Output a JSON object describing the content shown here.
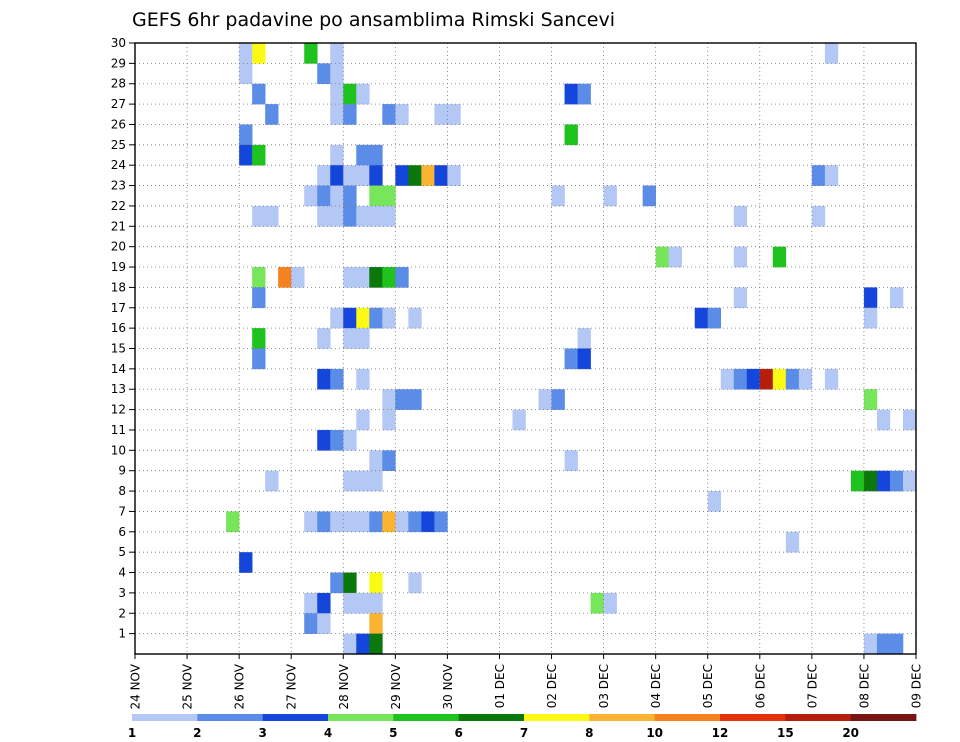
{
  "chart_data": {
    "type": "heatmap",
    "title": "GEFS 6hr padavine po ansamblima Rimski Sancevi",
    "xlabel": "",
    "ylabel": "",
    "x_ticks": [
      "24 NOV",
      "25 NOV",
      "26 NOV",
      "27 NOV",
      "28 NOV",
      "29 NOV",
      "30 NOV",
      "01 DEC",
      "02 DEC",
      "03 DEC",
      "04 DEC",
      "05 DEC",
      "06 DEC",
      "07 DEC",
      "08 DEC",
      "09 DEC"
    ],
    "y_ticks": [
      "1",
      "2",
      "3",
      "4",
      "5",
      "6",
      "7",
      "8",
      "9",
      "10",
      "11",
      "12",
      "13",
      "14",
      "15",
      "16",
      "17",
      "18",
      "19",
      "20",
      "21",
      "22",
      "23",
      "24",
      "25",
      "26",
      "27",
      "28",
      "29",
      "30"
    ],
    "x_range": [
      0,
      60
    ],
    "y_range": [
      0,
      30
    ],
    "x_unit": "6-hour step since 24 NOV 00Z",
    "y_unit": "ensemble member",
    "levels": [
      "1",
      "2",
      "3",
      "4",
      "5",
      "6",
      "7",
      "8",
      "10",
      "12",
      "15",
      "20"
    ],
    "colors": [
      "#b4c8f5",
      "#5a8ce8",
      "#1446dc",
      "#78e65a",
      "#1ec31e",
      "#0a780a",
      "#fafa14",
      "#fab432",
      "#f5821e",
      "#e6320a",
      "#b41e0a",
      "#781414"
    ],
    "cells": [
      [
        8,
        30,
        1
      ],
      [
        9,
        30,
        7
      ],
      [
        13,
        30,
        5
      ],
      [
        15,
        30,
        1
      ],
      [
        53,
        30,
        1
      ],
      [
        8,
        29,
        1
      ],
      [
        14,
        29,
        2
      ],
      [
        15,
        29,
        1
      ],
      [
        9,
        28,
        2
      ],
      [
        15,
        28,
        1
      ],
      [
        16,
        28,
        5
      ],
      [
        17,
        28,
        1
      ],
      [
        33,
        28,
        3
      ],
      [
        34,
        28,
        2
      ],
      [
        10,
        27,
        2
      ],
      [
        15,
        27,
        1
      ],
      [
        16,
        27,
        2
      ],
      [
        19,
        27,
        2
      ],
      [
        20,
        27,
        1
      ],
      [
        23,
        27,
        1
      ],
      [
        24,
        27,
        1
      ],
      [
        8,
        26,
        2
      ],
      [
        33,
        26,
        5
      ],
      [
        8,
        25,
        3
      ],
      [
        9,
        25,
        5
      ],
      [
        15,
        25,
        1
      ],
      [
        17,
        25,
        2
      ],
      [
        18,
        25,
        2
      ],
      [
        14,
        24,
        1
      ],
      [
        15,
        24,
        3
      ],
      [
        16,
        24,
        1
      ],
      [
        17,
        24,
        1
      ],
      [
        18,
        24,
        3
      ],
      [
        20,
        24,
        3
      ],
      [
        21,
        24,
        6
      ],
      [
        22,
        24,
        8
      ],
      [
        23,
        24,
        3
      ],
      [
        24,
        24,
        1
      ],
      [
        52,
        24,
        2
      ],
      [
        53,
        24,
        1
      ],
      [
        13,
        23,
        1
      ],
      [
        14,
        23,
        2
      ],
      [
        15,
        23,
        1
      ],
      [
        16,
        23,
        2
      ],
      [
        18,
        23,
        4
      ],
      [
        19,
        23,
        4
      ],
      [
        32,
        23,
        1
      ],
      [
        36,
        23,
        1
      ],
      [
        39,
        23,
        2
      ],
      [
        9,
        22,
        1
      ],
      [
        10,
        22,
        1
      ],
      [
        14,
        22,
        1
      ],
      [
        15,
        22,
        1
      ],
      [
        16,
        22,
        2
      ],
      [
        17,
        22,
        1
      ],
      [
        18,
        22,
        1
      ],
      [
        19,
        22,
        1
      ],
      [
        46,
        22,
        1
      ],
      [
        52,
        22,
        1
      ],
      [
        40,
        20,
        4
      ],
      [
        41,
        20,
        1
      ],
      [
        46,
        20,
        1
      ],
      [
        49,
        20,
        5
      ],
      [
        9,
        19,
        4
      ],
      [
        11,
        19,
        9
      ],
      [
        12,
        19,
        1
      ],
      [
        16,
        19,
        1
      ],
      [
        17,
        19,
        1
      ],
      [
        18,
        19,
        6
      ],
      [
        19,
        19,
        5
      ],
      [
        20,
        19,
        2
      ],
      [
        9,
        18,
        2
      ],
      [
        46,
        18,
        1
      ],
      [
        56,
        18,
        3
      ],
      [
        58,
        18,
        1
      ],
      [
        15,
        17,
        1
      ],
      [
        16,
        17,
        3
      ],
      [
        17,
        17,
        7
      ],
      [
        18,
        17,
        2
      ],
      [
        19,
        17,
        1
      ],
      [
        21,
        17,
        1
      ],
      [
        43,
        17,
        3
      ],
      [
        44,
        17,
        2
      ],
      [
        56,
        17,
        1
      ],
      [
        9,
        16,
        5
      ],
      [
        14,
        16,
        1
      ],
      [
        16,
        16,
        1
      ],
      [
        17,
        16,
        1
      ],
      [
        34,
        16,
        1
      ],
      [
        9,
        15,
        2
      ],
      [
        33,
        15,
        2
      ],
      [
        34,
        15,
        3
      ],
      [
        14,
        14,
        3
      ],
      [
        15,
        14,
        2
      ],
      [
        17,
        14,
        1
      ],
      [
        45,
        14,
        1
      ],
      [
        46,
        14,
        2
      ],
      [
        47,
        14,
        3
      ],
      [
        48,
        14,
        11
      ],
      [
        49,
        14,
        7
      ],
      [
        50,
        14,
        2
      ],
      [
        51,
        14,
        1
      ],
      [
        53,
        14,
        1
      ],
      [
        19,
        13,
        1
      ],
      [
        20,
        13,
        2
      ],
      [
        21,
        13,
        2
      ],
      [
        31,
        13,
        1
      ],
      [
        32,
        13,
        2
      ],
      [
        56,
        13,
        4
      ],
      [
        17,
        12,
        1
      ],
      [
        19,
        12,
        1
      ],
      [
        29,
        12,
        1
      ],
      [
        57,
        12,
        1
      ],
      [
        59,
        12,
        1
      ],
      [
        14,
        11,
        3
      ],
      [
        15,
        11,
        2
      ],
      [
        16,
        11,
        1
      ],
      [
        18,
        10,
        1
      ],
      [
        19,
        10,
        2
      ],
      [
        33,
        10,
        1
      ],
      [
        10,
        9,
        1
      ],
      [
        16,
        9,
        1
      ],
      [
        17,
        9,
        1
      ],
      [
        18,
        9,
        1
      ],
      [
        55,
        9,
        5
      ],
      [
        56,
        9,
        6
      ],
      [
        57,
        9,
        3
      ],
      [
        58,
        9,
        2
      ],
      [
        59,
        9,
        1
      ],
      [
        44,
        8,
        1
      ],
      [
        7,
        7,
        4
      ],
      [
        13,
        7,
        1
      ],
      [
        14,
        7,
        2
      ],
      [
        15,
        7,
        1
      ],
      [
        16,
        7,
        1
      ],
      [
        17,
        7,
        1
      ],
      [
        18,
        7,
        2
      ],
      [
        19,
        7,
        8
      ],
      [
        20,
        7,
        1
      ],
      [
        21,
        7,
        2
      ],
      [
        22,
        7,
        3
      ],
      [
        23,
        7,
        2
      ],
      [
        50,
        6,
        1
      ],
      [
        8,
        5,
        3
      ],
      [
        15,
        4,
        2
      ],
      [
        16,
        4,
        6
      ],
      [
        18,
        4,
        7
      ],
      [
        21,
        4,
        1
      ],
      [
        13,
        3,
        1
      ],
      [
        14,
        3,
        3
      ],
      [
        16,
        3,
        1
      ],
      [
        17,
        3,
        1
      ],
      [
        18,
        3,
        1
      ],
      [
        35,
        3,
        4
      ],
      [
        36,
        3,
        1
      ],
      [
        13,
        2,
        2
      ],
      [
        14,
        2,
        1
      ],
      [
        18,
        2,
        8
      ],
      [
        16,
        1,
        1
      ],
      [
        17,
        1,
        3
      ],
      [
        18,
        1,
        6
      ],
      [
        56,
        1,
        1
      ],
      [
        57,
        1,
        2
      ],
      [
        58,
        1,
        2
      ]
    ]
  }
}
